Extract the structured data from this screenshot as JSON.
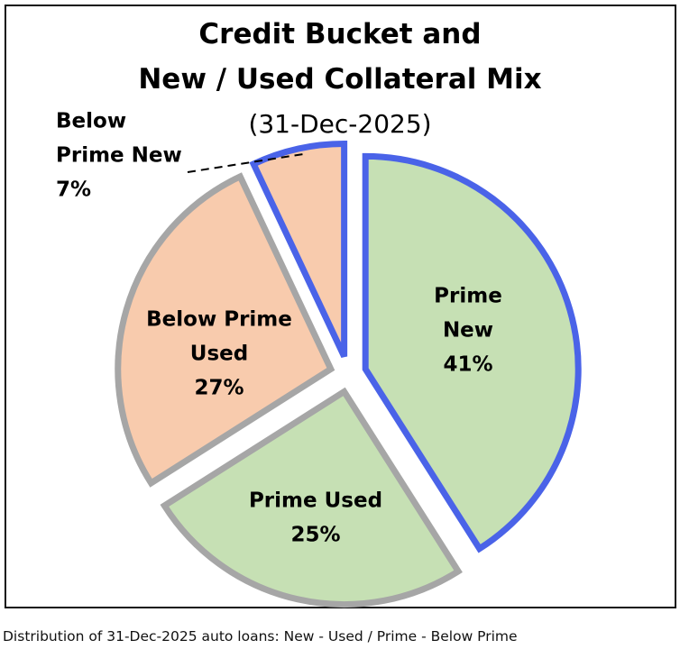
{
  "chart_data": {
    "type": "pie",
    "title_line1": "Credit Bucket and",
    "title_line2": "New / Used Collateral Mix",
    "subtitle": "(31-Dec-2025)",
    "slices": [
      {
        "label_lines": [
          "Prime",
          "New",
          "41%"
        ],
        "value": 41,
        "fill": "#c6e0b4",
        "stroke": "#4a63e8"
      },
      {
        "label_lines": [
          "Prime Used",
          "25%"
        ],
        "value": 25,
        "fill": "#c6e0b4",
        "stroke": "#a6a6a6"
      },
      {
        "label_lines": [
          "Below Prime",
          "Used",
          "27%"
        ],
        "value": 27,
        "fill": "#f8cbad",
        "stroke": "#a6a6a6"
      },
      {
        "label_lines": [
          "Below",
          "Prime New",
          "7%"
        ],
        "value": 7,
        "fill": "#f8cbad",
        "stroke": "#4a63e8"
      }
    ]
  },
  "caption": "Distribution of 31-Dec-2025 auto loans: New - Used / Prime - Below Prime"
}
